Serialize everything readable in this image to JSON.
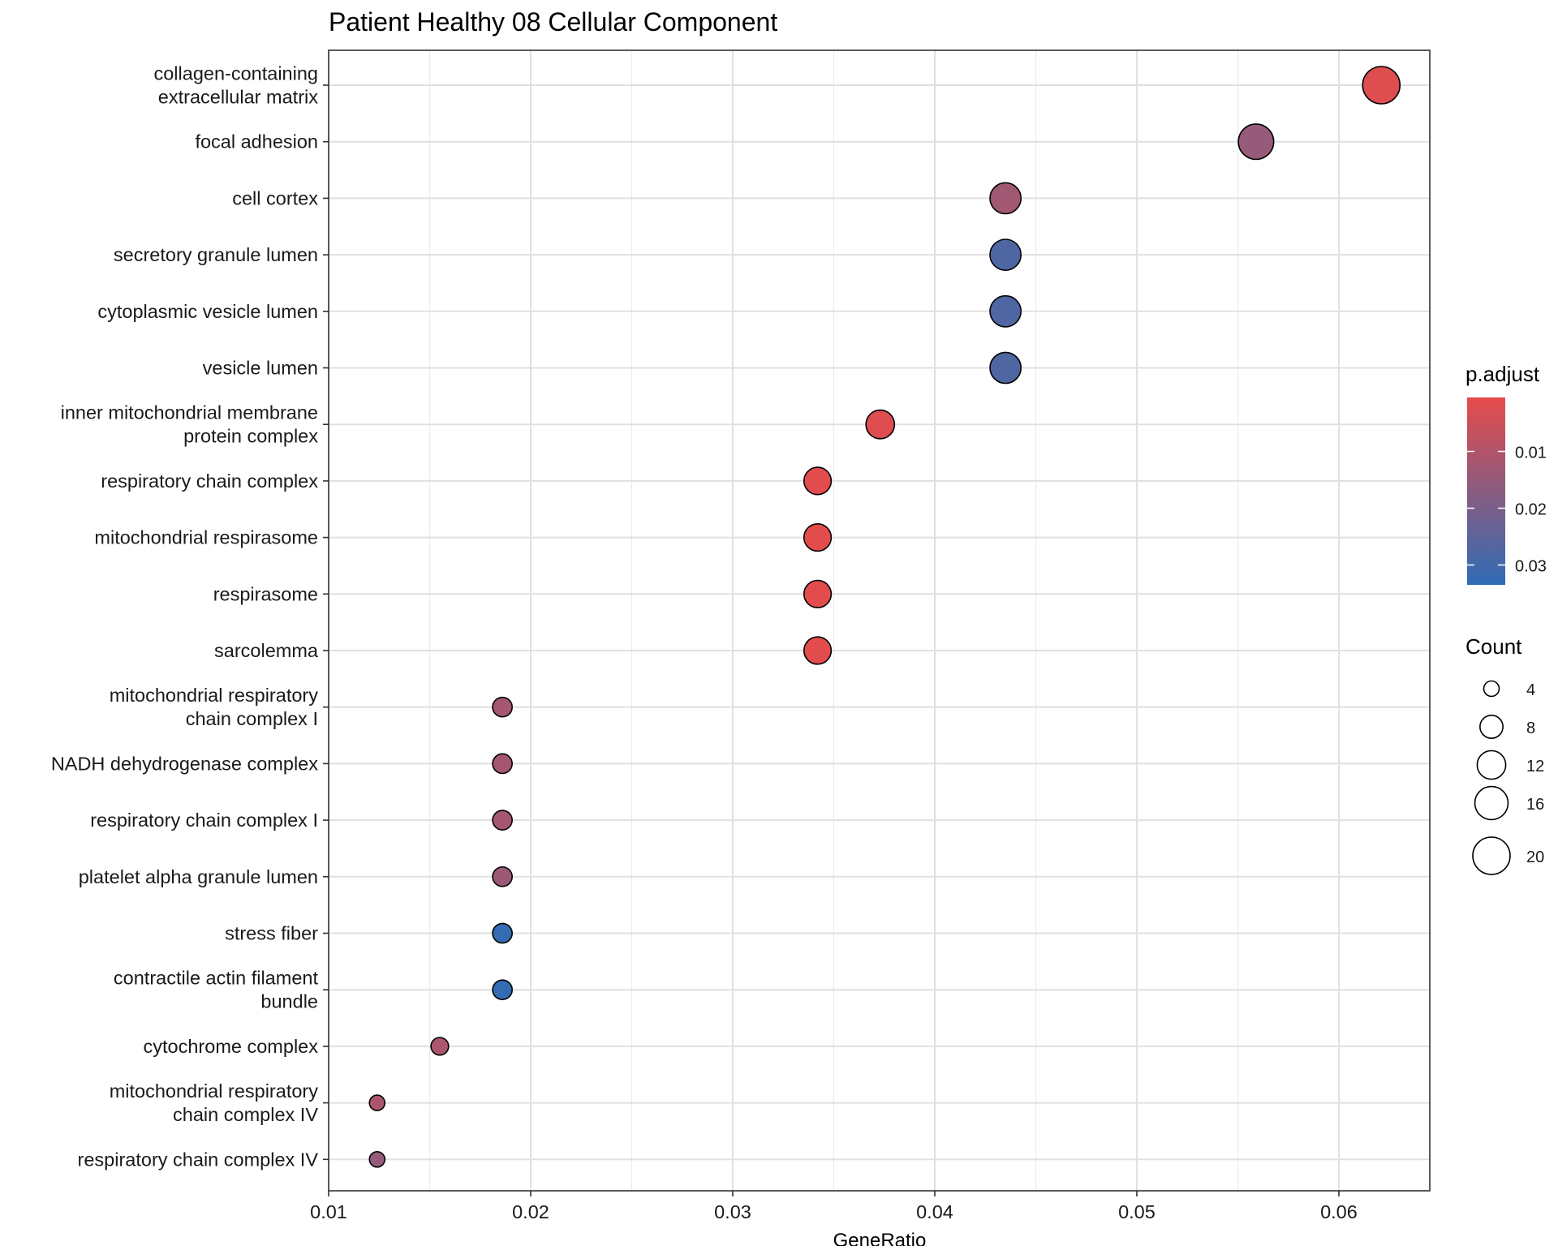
{
  "chart_data": {
    "type": "scatter",
    "title": "Patient Healthy 08 Cellular Component",
    "xlabel": "GeneRatio",
    "ylabel": "",
    "xlim": [
      0.01,
      0.0645
    ],
    "x_ticks": [
      0.01,
      0.02,
      0.03,
      0.04,
      0.05,
      0.06
    ],
    "x_tick_labels": [
      "0.01",
      "0.02",
      "0.03",
      "0.04",
      "0.05",
      "0.06"
    ],
    "grid": true,
    "legend_position": "right",
    "color_legend": {
      "title": "p.adjust",
      "range": [
        0.0005,
        0.0335
      ],
      "ticks": [
        0.01,
        0.02,
        0.03
      ],
      "tick_labels": [
        "0.01",
        "0.02",
        "0.03"
      ],
      "low_color": "#E64B4B",
      "high_color": "#2F6CB5"
    },
    "size_legend": {
      "title": "Count",
      "values": [
        4,
        8,
        12,
        16,
        20
      ],
      "labels": [
        "4",
        "8",
        "12",
        "16",
        "20"
      ]
    },
    "points": [
      {
        "term": [
          "collagen-containing",
          "extracellular matrix"
        ],
        "gene_ratio": 0.0621,
        "count": 20,
        "p_adjust": 0.002
      },
      {
        "term": [
          "focal adhesion"
        ],
        "gene_ratio": 0.0559,
        "count": 18,
        "p_adjust": 0.015
      },
      {
        "term": [
          "cell cortex"
        ],
        "gene_ratio": 0.0435,
        "count": 14,
        "p_adjust": 0.013
      },
      {
        "term": [
          "secretory granule lumen"
        ],
        "gene_ratio": 0.0435,
        "count": 14,
        "p_adjust": 0.028
      },
      {
        "term": [
          "cytoplasmic vesicle lumen"
        ],
        "gene_ratio": 0.0435,
        "count": 14,
        "p_adjust": 0.028
      },
      {
        "term": [
          "vesicle lumen"
        ],
        "gene_ratio": 0.0435,
        "count": 14,
        "p_adjust": 0.028
      },
      {
        "term": [
          "inner mitochondrial membrane",
          "protein complex"
        ],
        "gene_ratio": 0.0373,
        "count": 12,
        "p_adjust": 0.002
      },
      {
        "term": [
          "respiratory chain complex"
        ],
        "gene_ratio": 0.0342,
        "count": 11,
        "p_adjust": 0.001
      },
      {
        "term": [
          "mitochondrial respirasome"
        ],
        "gene_ratio": 0.0342,
        "count": 11,
        "p_adjust": 0.001
      },
      {
        "term": [
          "respirasome"
        ],
        "gene_ratio": 0.0342,
        "count": 11,
        "p_adjust": 0.001
      },
      {
        "term": [
          "sarcolemma"
        ],
        "gene_ratio": 0.0342,
        "count": 11,
        "p_adjust": 0.001
      },
      {
        "term": [
          "mitochondrial respiratory",
          "chain complex I"
        ],
        "gene_ratio": 0.0186,
        "count": 6,
        "p_adjust": 0.012
      },
      {
        "term": [
          "NADH dehydrogenase complex"
        ],
        "gene_ratio": 0.0186,
        "count": 6,
        "p_adjust": 0.012
      },
      {
        "term": [
          "respiratory chain complex I"
        ],
        "gene_ratio": 0.0186,
        "count": 6,
        "p_adjust": 0.012
      },
      {
        "term": [
          "platelet alpha granule lumen"
        ],
        "gene_ratio": 0.0186,
        "count": 6,
        "p_adjust": 0.014
      },
      {
        "term": [
          "stress fiber"
        ],
        "gene_ratio": 0.0186,
        "count": 6,
        "p_adjust": 0.033
      },
      {
        "term": [
          "contractile actin filament",
          "bundle"
        ],
        "gene_ratio": 0.0186,
        "count": 6,
        "p_adjust": 0.033
      },
      {
        "term": [
          "cytochrome complex"
        ],
        "gene_ratio": 0.0155,
        "count": 5,
        "p_adjust": 0.011
      },
      {
        "term": [
          "mitochondrial respiratory",
          "chain complex IV"
        ],
        "gene_ratio": 0.0124,
        "count": 4,
        "p_adjust": 0.011
      },
      {
        "term": [
          "respiratory chain complex IV"
        ],
        "gene_ratio": 0.0124,
        "count": 4,
        "p_adjust": 0.015
      }
    ]
  }
}
